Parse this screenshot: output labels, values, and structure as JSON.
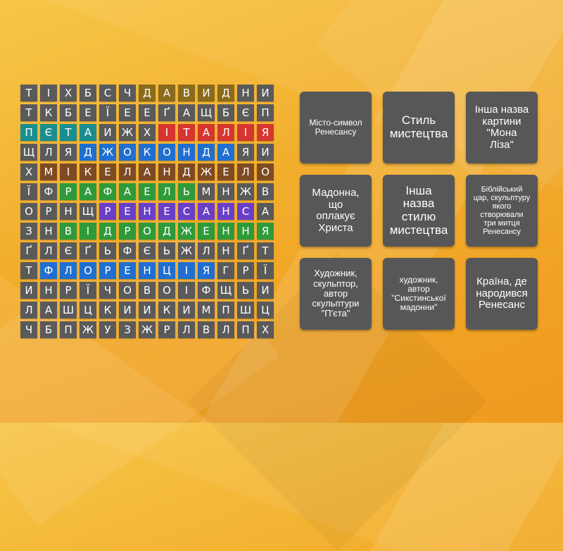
{
  "grid": {
    "rows": [
      [
        "Т",
        "І",
        "Х",
        "Б",
        "С",
        "Ч",
        "Д",
        "А",
        "В",
        "И",
        "Д",
        "Н",
        "И"
      ],
      [
        "Т",
        "К",
        "Б",
        "Е",
        "Ї",
        "Е",
        "Е",
        "Ґ",
        "А",
        "Щ",
        "Б",
        "Є",
        "П"
      ],
      [
        "П",
        "Є",
        "Т",
        "А",
        "И",
        "Ж",
        "Х",
        "І",
        "Т",
        "А",
        "Л",
        "І",
        "Я"
      ],
      [
        "Щ",
        "Л",
        "Я",
        "Д",
        "Ж",
        "О",
        "К",
        "О",
        "Н",
        "Д",
        "А",
        "Я",
        "И"
      ],
      [
        "Х",
        "М",
        "І",
        "К",
        "Е",
        "Л",
        "А",
        "Н",
        "Д",
        "Ж",
        "Е",
        "Л",
        "О"
      ],
      [
        "Ї",
        "Ф",
        "Р",
        "А",
        "Ф",
        "А",
        "Е",
        "Л",
        "Ь",
        "М",
        "Н",
        "Ж",
        "В"
      ],
      [
        "О",
        "Р",
        "Н",
        "Щ",
        "Р",
        "Е",
        "Н",
        "Е",
        "С",
        "А",
        "Н",
        "С",
        "А"
      ],
      [
        "З",
        "Н",
        "В",
        "І",
        "Д",
        "Р",
        "О",
        "Д",
        "Ж",
        "Е",
        "Н",
        "Н",
        "Я"
      ],
      [
        "Ґ",
        "Л",
        "Є",
        "Ґ",
        "Ь",
        "Ф",
        "Є",
        "Ь",
        "Ж",
        "Л",
        "Н",
        "Ґ",
        "Т"
      ],
      [
        "Т",
        "Ф",
        "Л",
        "О",
        "Р",
        "Е",
        "Н",
        "Ц",
        "І",
        "Я",
        "Г",
        "Р",
        "Ї"
      ],
      [
        "И",
        "Н",
        "Р",
        "Ї",
        "Ч",
        "О",
        "В",
        "О",
        "І",
        "Ф",
        "Щ",
        "Ь",
        "И"
      ],
      [
        "Л",
        "А",
        "Ш",
        "Ц",
        "К",
        "И",
        "И",
        "К",
        "И",
        "М",
        "П",
        "Ш",
        "Ц"
      ],
      [
        "Ч",
        "Б",
        "П",
        "Ж",
        "У",
        "З",
        "Ж",
        "Р",
        "Л",
        "В",
        "Л",
        "П",
        "Х"
      ]
    ],
    "highlights": [
      {
        "row": 0,
        "cols": [
          6,
          7,
          8,
          9,
          10
        ],
        "color": "olive"
      },
      {
        "row": 2,
        "cols": [
          0,
          1,
          2,
          3
        ],
        "color": "teal"
      },
      {
        "row": 2,
        "cols": [
          7,
          8,
          9,
          10,
          11,
          12
        ],
        "color": "red"
      },
      {
        "row": 3,
        "cols": [
          3,
          4,
          5,
          6,
          7,
          8,
          9,
          10
        ],
        "color": "blue"
      },
      {
        "row": 4,
        "cols": [
          1,
          2,
          3,
          4,
          5,
          6,
          7,
          8,
          9,
          10,
          11,
          12
        ],
        "color": "brown"
      },
      {
        "row": 5,
        "cols": [
          2,
          3,
          4,
          5,
          6,
          7,
          8
        ],
        "color": "green"
      },
      {
        "row": 6,
        "cols": [
          4,
          5,
          6,
          7,
          8,
          9,
          10,
          11
        ],
        "color": "purple"
      },
      {
        "row": 7,
        "cols": [
          2,
          3,
          4,
          5,
          6,
          7,
          8,
          9,
          10,
          11,
          12
        ],
        "color": "green"
      },
      {
        "row": 9,
        "cols": [
          1,
          2,
          3,
          4,
          5,
          6,
          7,
          8,
          9
        ],
        "color": "blue"
      }
    ]
  },
  "cards": [
    {
      "text": "Місто-символ\nРенесансу",
      "size": "s12"
    },
    {
      "text": "Стиль\nмистецтва",
      "size": "s17"
    },
    {
      "text": "Інша назва\nкартини\n\"Мона\nЛіза\"",
      "size": "s15"
    },
    {
      "text": "Мадонна,\nщо\nоплакує\nХриста",
      "size": "s15"
    },
    {
      "text": "Інша\nназва\nстилю\nмистецтва",
      "size": "s17"
    },
    {
      "text": "Біблійський\nцар, скульптуру\nякого\nстворювали\nтри митця\nРенесансу",
      "size": "s11"
    },
    {
      "text": "Художник,\nскульптор,\nавтор\nскульптури\n\"П'єта\"",
      "size": "s13"
    },
    {
      "text": "художник,\nавтор\n\"Сикстинської\nмадонни\"",
      "size": "s12"
    },
    {
      "text": "Країна, де\nнародився\nРенесанс",
      "size": "s15"
    }
  ]
}
